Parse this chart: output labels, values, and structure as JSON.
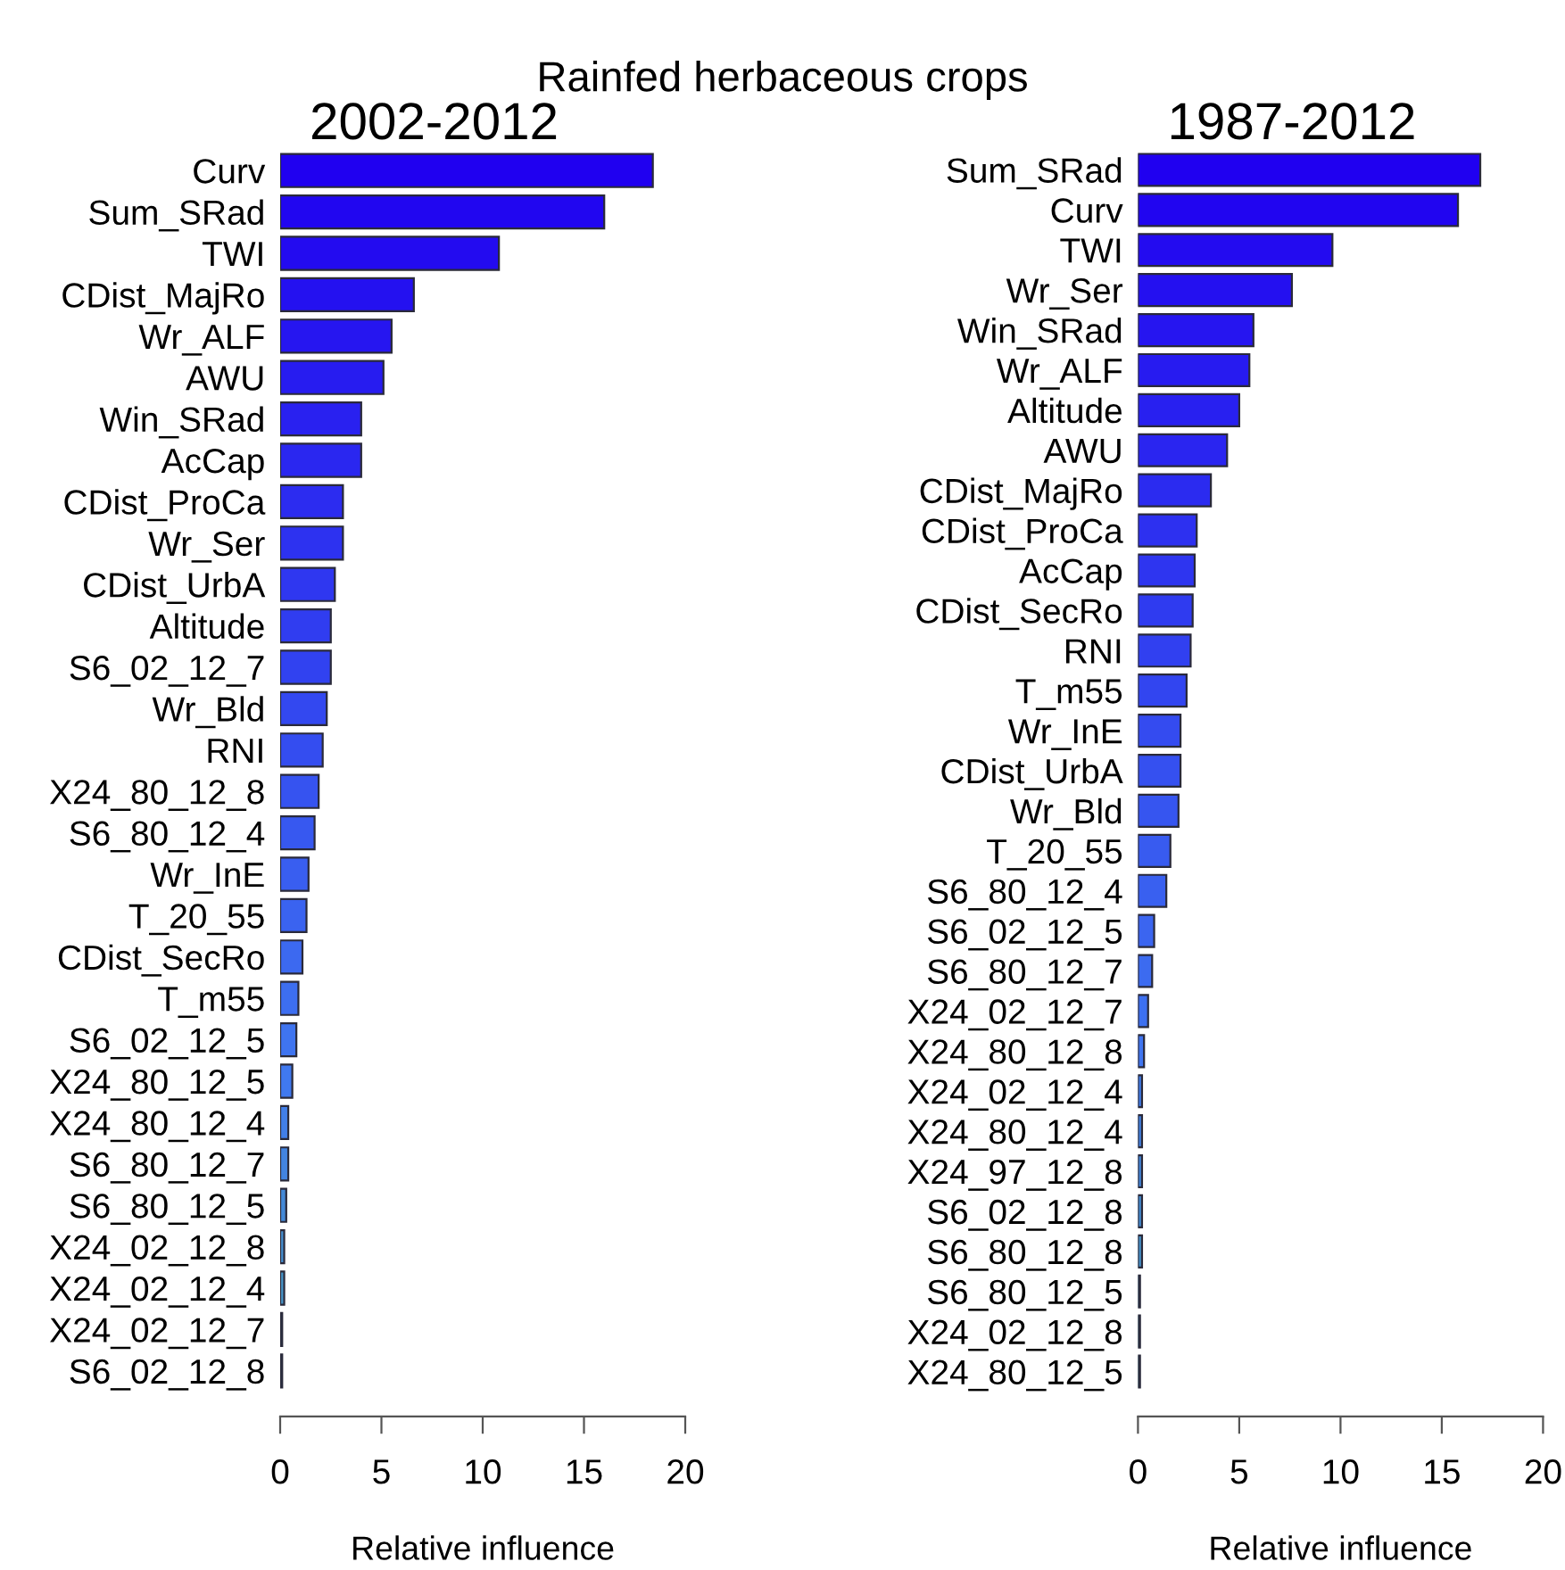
{
  "chart_data": [
    {
      "type": "bar",
      "orientation": "horizontal",
      "title": "Rainfed herbaceous crops",
      "subtitle": "2002-2012",
      "xlabel": "Relative influence",
      "categories": [
        "Curv",
        "Sum_SRad",
        "TWI",
        "CDist_MajRo",
        "Wr_ALF",
        "AWU",
        "Win_SRad",
        "AcCap",
        "CDist_ProCa",
        "Wr_Ser",
        "CDist_UrbA",
        "Altitude",
        "S6_02_12_7",
        "Wr_Bld",
        "RNI",
        "X24_80_12_8",
        "S6_80_12_4",
        "Wr_InE",
        "T_20_55",
        "CDist_SecRo",
        "T_m55",
        "S6_02_12_5",
        "X24_80_12_5",
        "X24_80_12_4",
        "S6_80_12_7",
        "S6_80_12_5",
        "X24_02_12_8",
        "X24_02_12_4",
        "X24_02_12_7",
        "S6_02_12_8"
      ],
      "values": [
        18.4,
        16.0,
        10.8,
        6.6,
        5.5,
        5.1,
        4.0,
        4.0,
        3.1,
        3.1,
        2.7,
        2.5,
        2.5,
        2.3,
        2.1,
        1.9,
        1.7,
        1.4,
        1.3,
        1.1,
        0.9,
        0.8,
        0.6,
        0.4,
        0.4,
        0.3,
        0.2,
        0.2,
        0.1,
        0.1
      ],
      "colors": [
        "#2000f0",
        "#2106f0",
        "#230bf0",
        "#2411f0",
        "#2616f0",
        "#271cf0",
        "#2921f0",
        "#2a27f0",
        "#2c2cf0",
        "#2d32f0",
        "#2f37f0",
        "#303df0",
        "#3142f0",
        "#3348f0",
        "#344df0",
        "#3653f0",
        "#3758f0",
        "#395ef0",
        "#3a63f0",
        "#3c69f0",
        "#3d6ef0",
        "#3f74f0",
        "#4079f0",
        "#427fe8",
        "#4384e0",
        "#448ad8",
        "#468fd0",
        "#4795c8",
        "#499ac0",
        "#4aa0b8"
      ],
      "xlim": [
        0,
        20
      ],
      "xticks": [
        0,
        5,
        10,
        15,
        20
      ]
    },
    {
      "type": "bar",
      "orientation": "horizontal",
      "subtitle": "1987-2012",
      "xlabel": "Relative influence",
      "categories": [
        "Sum_SRad",
        "Curv",
        "TWI",
        "Wr_Ser",
        "Win_SRad",
        "Wr_ALF",
        "Altitude",
        "AWU",
        "CDist_MajRo",
        "CDist_ProCa",
        "AcCap",
        "CDist_SecRo",
        "RNI",
        "T_m55",
        "Wr_InE",
        "CDist_UrbA",
        "Wr_Bld",
        "T_20_55",
        "S6_80_12_4",
        "S6_02_12_5",
        "S6_80_12_7",
        "X24_02_12_7",
        "X24_80_12_8",
        "X24_02_12_4",
        "X24_80_12_4",
        "X24_97_12_8",
        "S6_02_12_8",
        "S6_80_12_8",
        "S6_80_12_5",
        "X24_02_12_8",
        "X24_80_12_5"
      ],
      "values": [
        16.9,
        15.8,
        9.6,
        7.6,
        5.7,
        5.5,
        5.0,
        4.4,
        3.6,
        2.9,
        2.8,
        2.7,
        2.6,
        2.4,
        2.1,
        2.1,
        2.0,
        1.6,
        1.4,
        0.8,
        0.7,
        0.5,
        0.3,
        0.2,
        0.2,
        0.2,
        0.2,
        0.2,
        0.1,
        0.1,
        0.1
      ],
      "colors": [
        "#2000f0",
        "#2105f0",
        "#230bf0",
        "#2410f0",
        "#2615f0",
        "#271bf0",
        "#2820f0",
        "#2a25f0",
        "#2b2bf0",
        "#2d30f0",
        "#2e35f0",
        "#2f3bf0",
        "#3140f0",
        "#3245f0",
        "#344bf0",
        "#3550f0",
        "#3655f0",
        "#385bf0",
        "#3960f0",
        "#3b65f0",
        "#3c6bf0",
        "#3d70f0",
        "#3f75f0",
        "#407be8",
        "#4280e0",
        "#4385d8",
        "#448bd0",
        "#4690c8",
        "#4795c0",
        "#499bb8",
        "#4aa0b0"
      ],
      "xlim": [
        0,
        20
      ],
      "xticks": [
        0,
        5,
        10,
        15,
        20
      ]
    }
  ]
}
